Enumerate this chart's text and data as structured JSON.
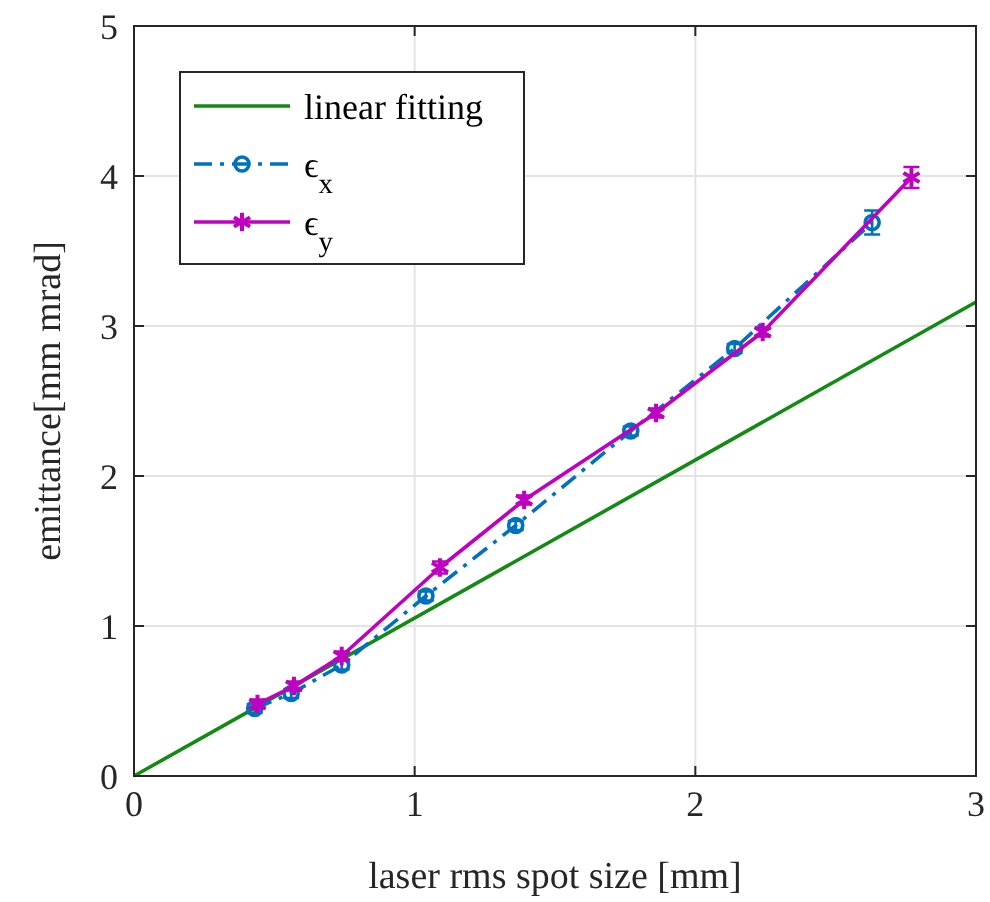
{
  "chart_data": {
    "type": "line",
    "xlabel": "laser rms spot size [mm]",
    "ylabel": "emittance[mm mrad]",
    "xlim": [
      0,
      3
    ],
    "xticks": [
      0,
      1,
      2,
      3
    ],
    "ylim": [
      0,
      5
    ],
    "yticks": [
      0,
      1,
      2,
      3,
      4,
      5
    ],
    "grid": true,
    "legend": "top left",
    "series": [
      {
        "name": "linear fitting",
        "color": "#138a13",
        "x": [
          0,
          3
        ],
        "values": [
          0,
          3.16
        ],
        "marker": "none",
        "line_style": "solid"
      },
      {
        "name": "ϵ$_{x}$",
        "color": "#0072bd",
        "x": [
          0.43,
          0.56,
          0.74,
          1.04,
          1.36,
          1.77,
          2.14,
          2.63
        ],
        "values": [
          0.45,
          0.55,
          0.74,
          1.2,
          1.67,
          2.3,
          2.85,
          3.69
        ],
        "errors": [
          0.03,
          0.03,
          0.03,
          0.03,
          0.03,
          0.03,
          0.03,
          0.08
        ],
        "marker": "circle",
        "line_style": "dashdot"
      },
      {
        "name": "ϵ$_{y}$",
        "color": "#c000c0",
        "x": [
          0.44,
          0.57,
          0.74,
          1.09,
          1.39,
          1.86,
          2.24,
          2.77
        ],
        "values": [
          0.48,
          0.6,
          0.8,
          1.39,
          1.84,
          2.42,
          2.96,
          3.99
        ],
        "errors": [
          0.03,
          0.03,
          0.03,
          0.04,
          0.03,
          0.03,
          0.03,
          0.07
        ],
        "marker": "cross",
        "line_style": "solid"
      }
    ]
  }
}
